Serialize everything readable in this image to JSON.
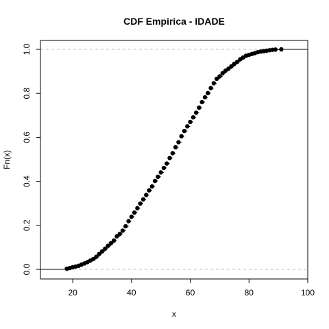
{
  "chart_data": {
    "type": "scatter",
    "title": "CDF Empirica - IDADE",
    "xlabel": "x",
    "ylabel": "Fn(x)",
    "xlim": [
      9,
      100
    ],
    "ylim": [
      0,
      1
    ],
    "x_ticks": [
      20,
      40,
      60,
      80,
      100
    ],
    "y_ticks": [
      0.0,
      0.2,
      0.4,
      0.6,
      0.8,
      1.0
    ],
    "x_tick_labels": [
      "20",
      "40",
      "60",
      "80",
      "100"
    ],
    "y_tick_labels": [
      "0.0",
      "0.2",
      "0.4",
      "0.6",
      "0.8",
      "1.0"
    ],
    "reference_lines": [
      0,
      1
    ],
    "grid": false,
    "series": [
      {
        "x": [
          18,
          19,
          20,
          21,
          22,
          23,
          24,
          25,
          26,
          27,
          28,
          29,
          30,
          31,
          32,
          33,
          34,
          35,
          36,
          37,
          38,
          39,
          40,
          41,
          42,
          43,
          44,
          45,
          46,
          47,
          48,
          49,
          50,
          51,
          52,
          53,
          54,
          55,
          56,
          57,
          58,
          59,
          60,
          61,
          62,
          63,
          64,
          65,
          66,
          67,
          68,
          69,
          70,
          71,
          72,
          73,
          74,
          75,
          76,
          77,
          78,
          79,
          80,
          81,
          82,
          83,
          84,
          85,
          86,
          87,
          88,
          89,
          91
        ],
        "y": [
          0.003,
          0.006,
          0.01,
          0.013,
          0.016,
          0.022,
          0.027,
          0.033,
          0.04,
          0.047,
          0.057,
          0.07,
          0.082,
          0.094,
          0.107,
          0.119,
          0.131,
          0.15,
          0.161,
          0.176,
          0.196,
          0.219,
          0.239,
          0.258,
          0.278,
          0.299,
          0.318,
          0.338,
          0.359,
          0.377,
          0.402,
          0.421,
          0.441,
          0.461,
          0.481,
          0.506,
          0.528,
          0.555,
          0.578,
          0.605,
          0.629,
          0.65,
          0.67,
          0.691,
          0.712,
          0.735,
          0.76,
          0.782,
          0.801,
          0.824,
          0.846,
          0.866,
          0.877,
          0.891,
          0.903,
          0.912,
          0.923,
          0.934,
          0.943,
          0.955,
          0.963,
          0.971,
          0.975,
          0.979,
          0.983,
          0.987,
          0.99,
          0.992,
          0.994,
          0.996,
          0.998,
          0.999,
          1.0
        ]
      }
    ]
  }
}
